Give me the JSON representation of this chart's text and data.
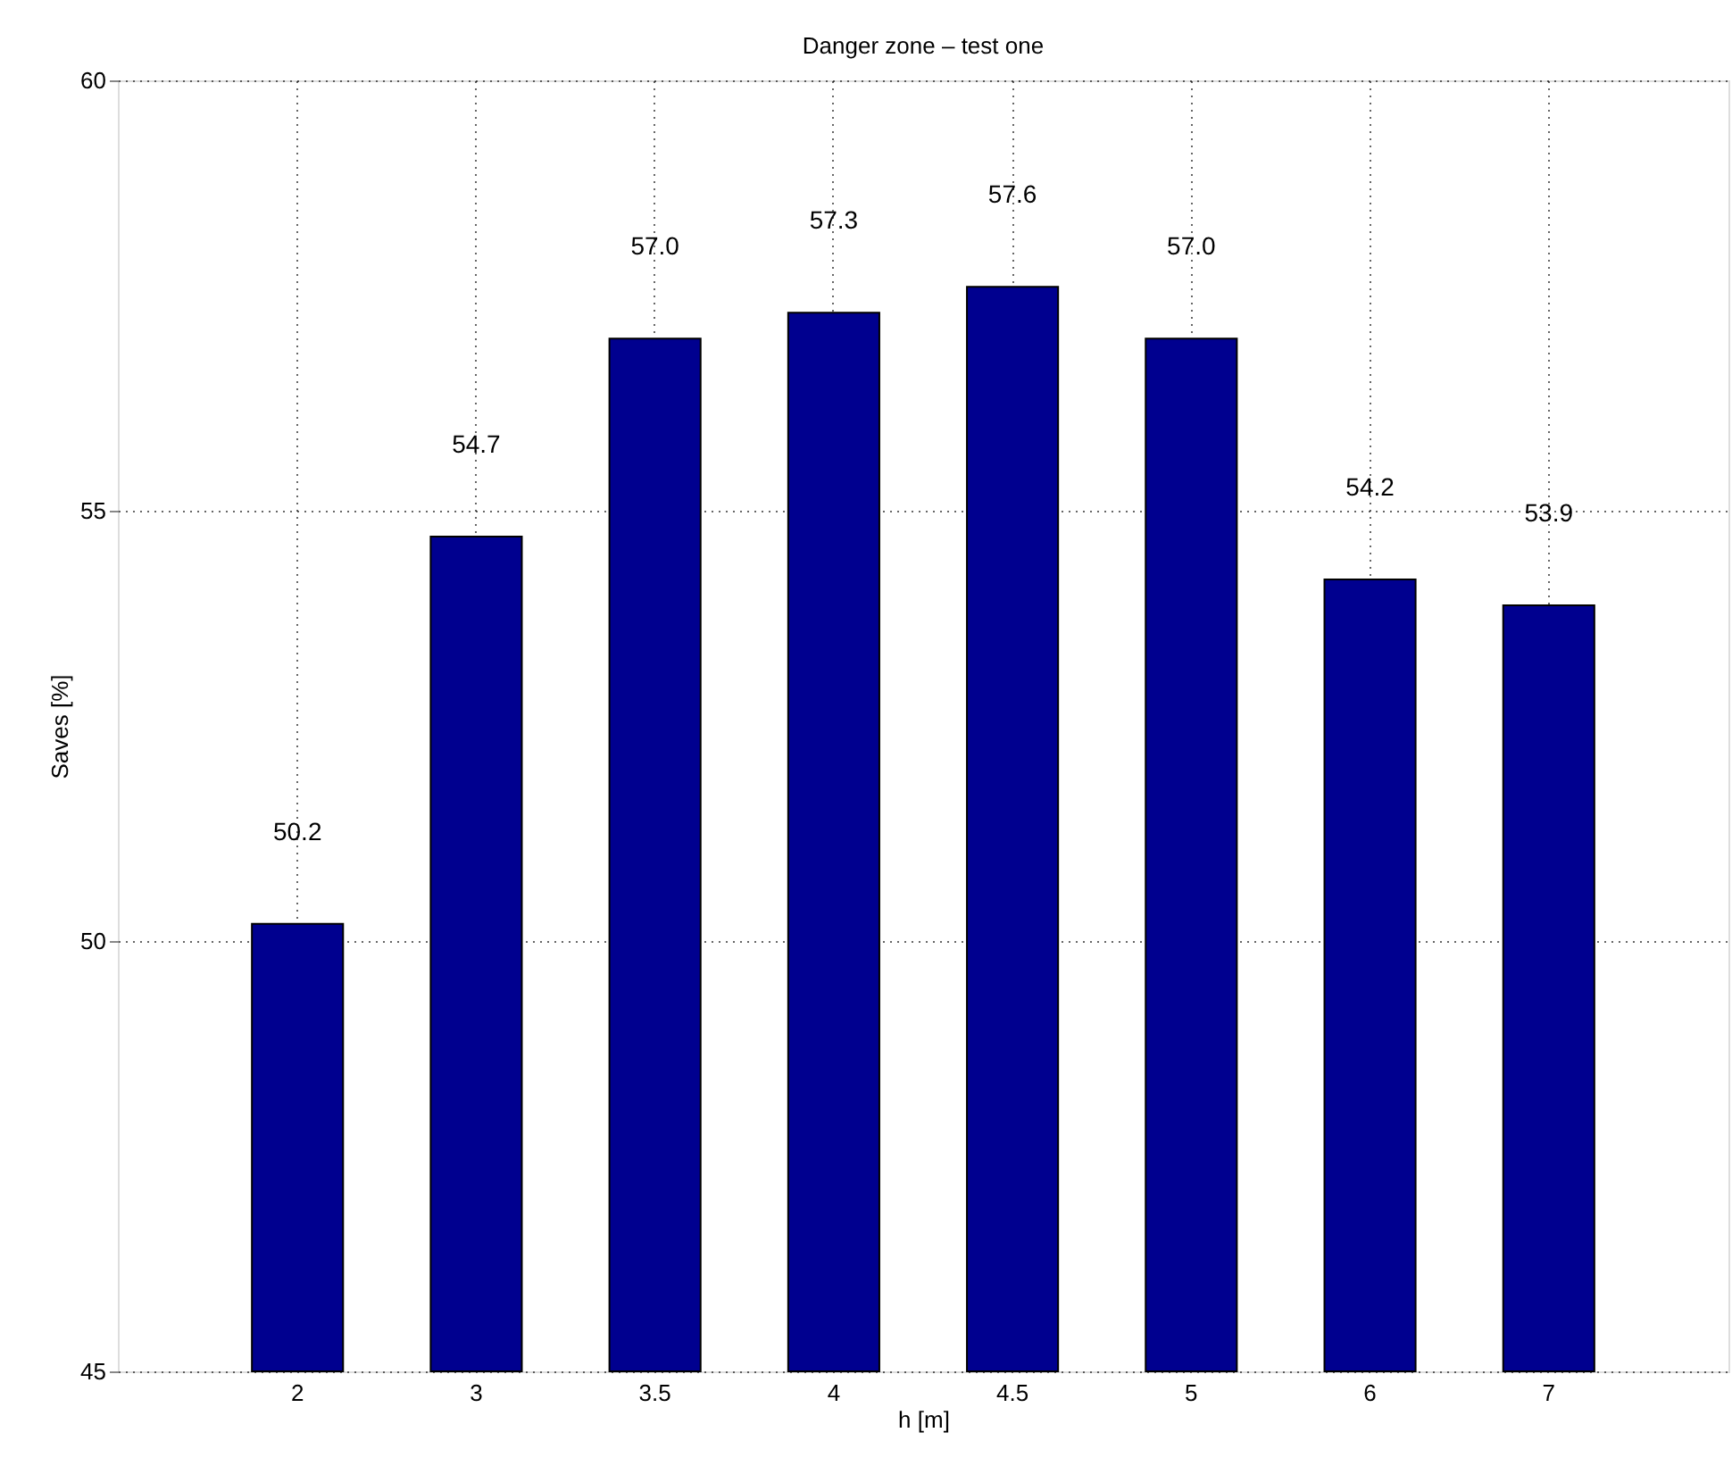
{
  "chart_data": {
    "type": "bar",
    "title": "Danger zone – test one",
    "xlabel": "h [m]",
    "ylabel": "Saves [%]",
    "categories": [
      "2",
      "3",
      "3.5",
      "4",
      "4.5",
      "5",
      "6",
      "7"
    ],
    "values": [
      50.2,
      54.7,
      57.0,
      57.3,
      57.6,
      57.0,
      54.2,
      53.9
    ],
    "value_labels": [
      "50.2",
      "54.7",
      "57.0",
      "57.3",
      "57.6",
      "57.0",
      "54.2",
      "53.9"
    ],
    "color": "#00008f",
    "ylim": [
      45,
      60
    ],
    "yticks": [
      45,
      50,
      55,
      60
    ],
    "grid": true
  }
}
